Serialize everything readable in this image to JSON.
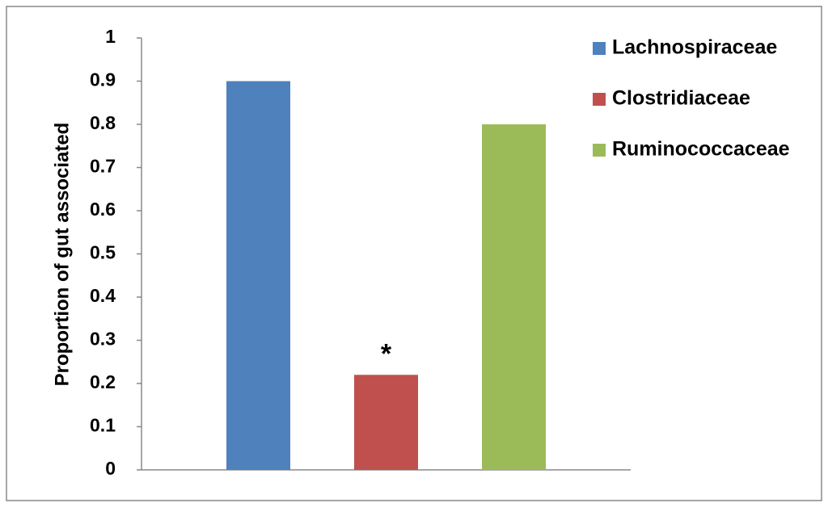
{
  "chart_data": {
    "type": "bar",
    "y_label": "Proportion of gut associated",
    "categories": [
      null
    ],
    "series": [
      {
        "name": "Lachnospiraceae",
        "color": "#4f81bd",
        "values": [
          0.9
        ]
      },
      {
        "name": "Clostridiaceae",
        "color": "#c0504d",
        "values": [
          0.22
        ]
      },
      {
        "name": "Ruminococcaceae",
        "color": "#9bbb59",
        "values": [
          0.8
        ]
      }
    ],
    "annotation": "*",
    "ylim": [
      0,
      1
    ],
    "yticks": [
      0,
      0.1,
      0.2,
      0.3,
      0.4,
      0.5,
      0.6,
      0.7,
      0.8,
      0.9,
      1
    ],
    "grid": false,
    "legend": "right"
  }
}
